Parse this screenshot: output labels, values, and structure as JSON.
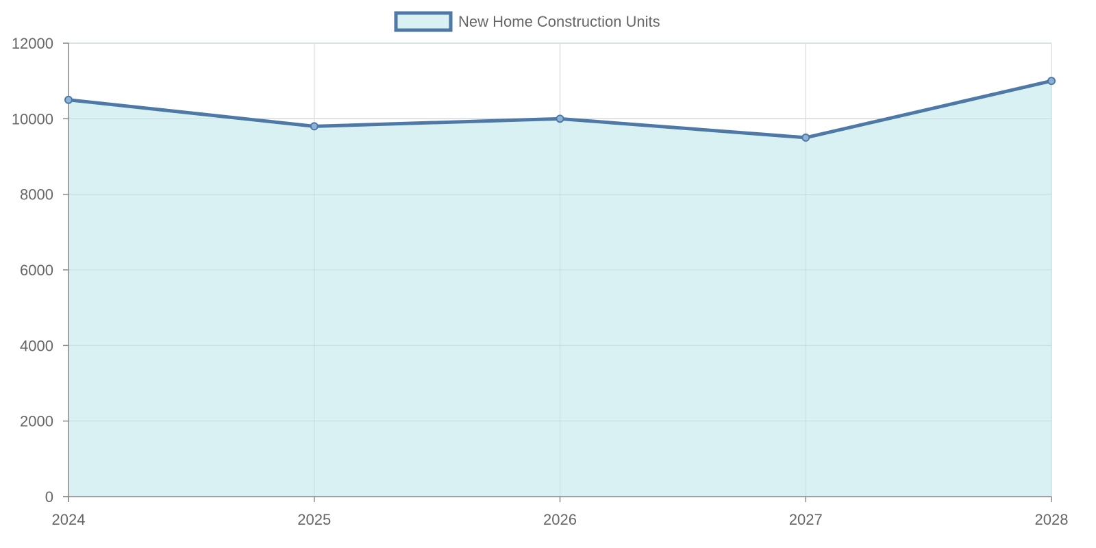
{
  "chart_data": {
    "type": "area",
    "title": "",
    "xlabel": "",
    "ylabel": "",
    "categories": [
      "2024",
      "2025",
      "2026",
      "2027",
      "2028"
    ],
    "series": [
      {
        "name": "New Home Construction Units",
        "values": [
          10500,
          9800,
          10000,
          9500,
          11000
        ],
        "line_color": "#4e79a7",
        "fill_color": "#daf1f3"
      }
    ],
    "ylim": [
      0,
      12000
    ],
    "yticks": [
      0,
      2000,
      4000,
      6000,
      8000,
      10000,
      12000
    ],
    "grid": true,
    "legend_position": "top-center",
    "colors": {
      "grid": "#e0e0e0",
      "axis": "#888888",
      "text": "#666666"
    }
  }
}
